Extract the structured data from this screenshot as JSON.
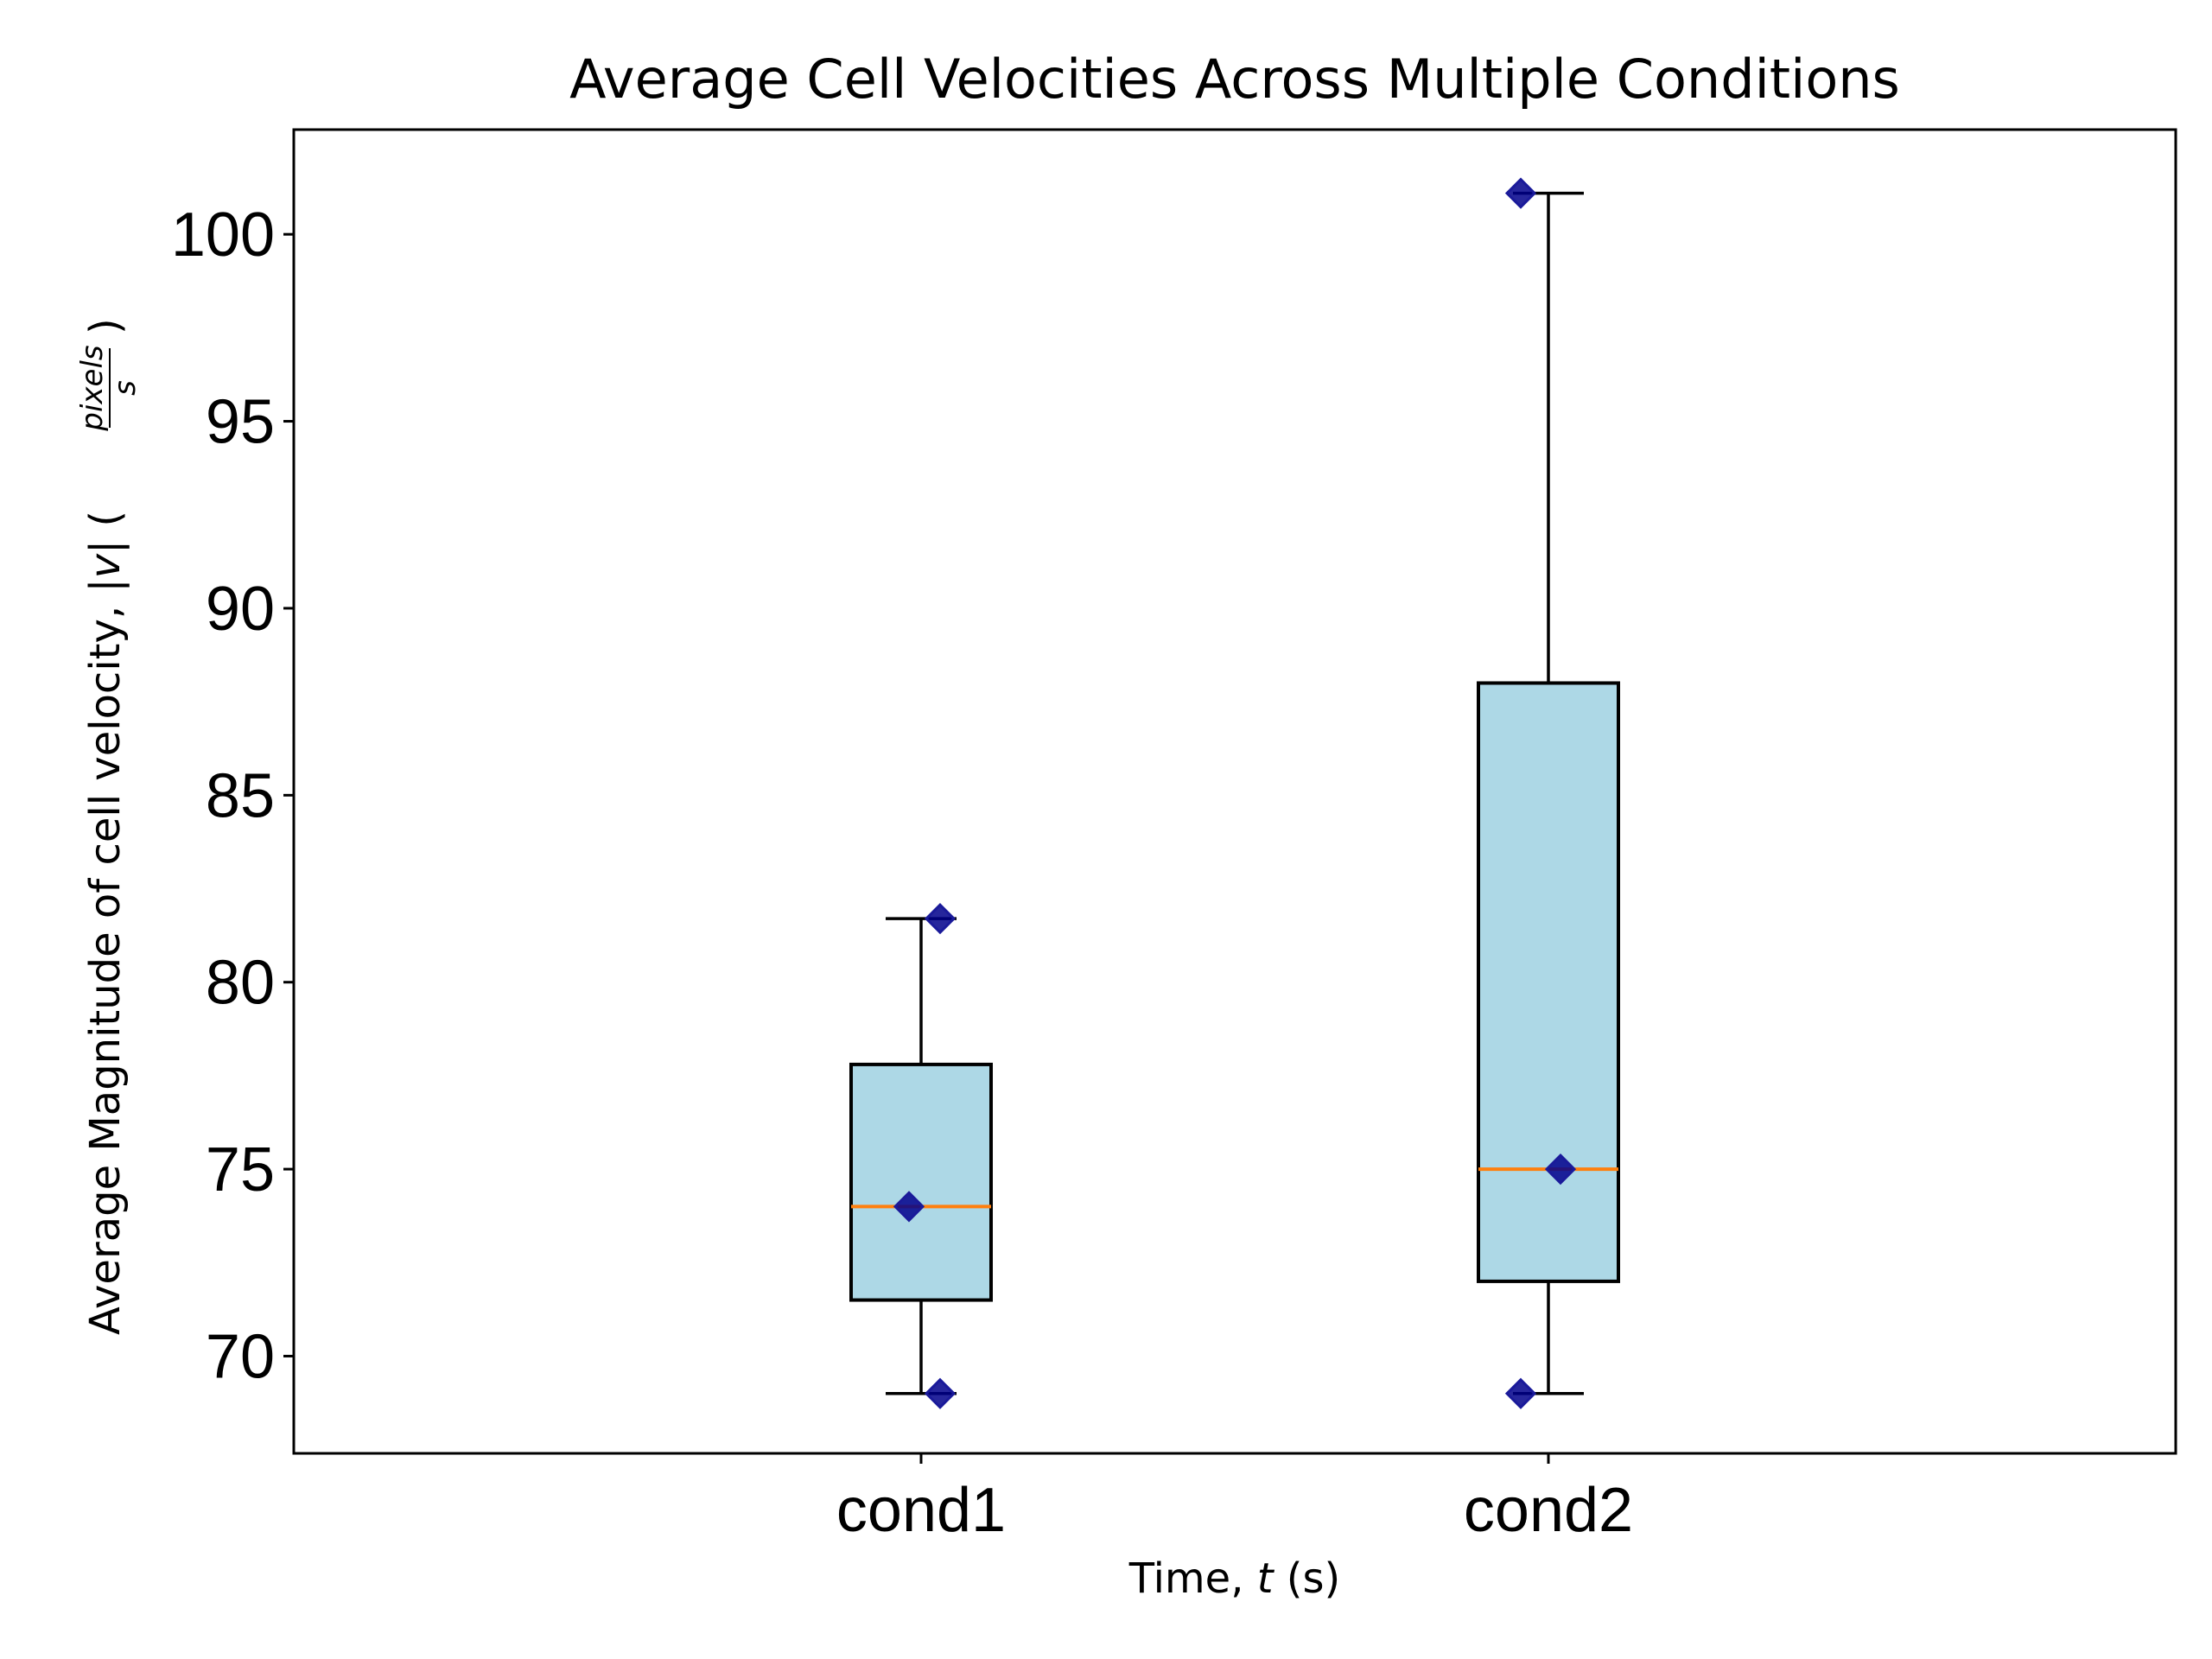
{
  "chart_data": {
    "type": "box",
    "title": "Average Cell Velocities Across Multiple Conditions",
    "xlabel_prefix": "Time, ",
    "xlabel_var": "t",
    "xlabel_suffix": " (s)",
    "ylabel_main": "Average Magnitude of cell velocity, |",
    "ylabel_var": "v",
    "ylabel_mid": "| (",
    "ylabel_frac_num": "pixels",
    "ylabel_frac_den": "s",
    "ylabel_close": ")",
    "categories": [
      "cond1",
      "cond2"
    ],
    "boxes": [
      {
        "name": "cond1",
        "whisker_low": 69,
        "q1": 71.5,
        "median": 74,
        "q3": 77.8,
        "whisker_high": 81.7,
        "points": [
          69,
          74,
          81.7
        ]
      },
      {
        "name": "cond2",
        "whisker_low": 69,
        "q1": 72,
        "median": 75,
        "q3": 88,
        "whisker_high": 101.1,
        "points": [
          69,
          75,
          101.1
        ]
      }
    ],
    "ylim": [
      67.4,
      102.8
    ],
    "yticks": [
      70,
      75,
      80,
      85,
      90,
      95,
      100
    ],
    "grid": false,
    "colors": {
      "box_fill": "#add8e6",
      "median": "#ff7f0e",
      "points": "#00008b",
      "frame": "#000000"
    }
  }
}
